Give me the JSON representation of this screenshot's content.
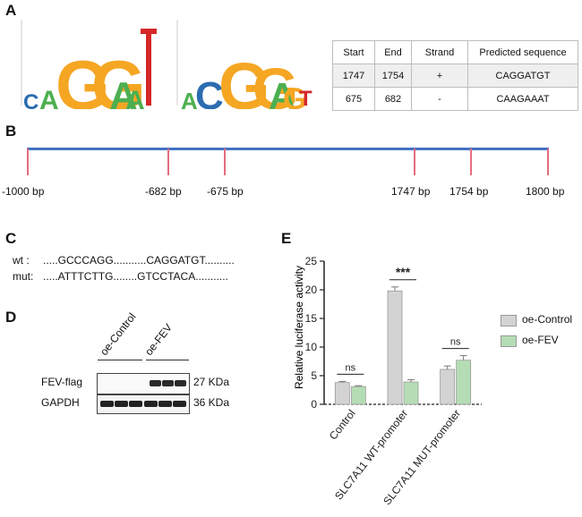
{
  "panels": {
    "a": "A",
    "b": "B",
    "c": "C",
    "d": "D",
    "e": "E"
  },
  "panel_a": {
    "logo1_letters": "CAGGAAAT",
    "logo2_letters": "ACCGGAAGT",
    "table": {
      "headers": [
        "Start",
        "End",
        "Strand",
        "Predicted sequence"
      ],
      "rows": [
        [
          "1747",
          "1754",
          "+",
          "CAGGATGT"
        ],
        [
          "675",
          "682",
          "-",
          "CAAGAAAT"
        ]
      ]
    }
  },
  "panel_b": {
    "line_color": "#4472c4",
    "tick_color": "#e46c7f",
    "labels": [
      "-1000 bp",
      "-682 bp",
      "-675 bp",
      "1747 bp",
      "1754 bp",
      "1800 bp"
    ]
  },
  "panel_c": {
    "wt_label": "wt :",
    "wt_seq": ".....GCCCAGG...........CAGGATGT..........",
    "mut_label": "mut:",
    "mut_seq": ".....ATTTCTTG........GTCCTACA..........."
  },
  "panel_d": {
    "lanes": [
      "oe-Control",
      "oe-FEV"
    ],
    "rows": [
      {
        "name": "FEV-flag",
        "size": "27 KDa"
      },
      {
        "name": "GAPDH",
        "size": "36 KDa"
      }
    ]
  },
  "chart_data": {
    "type": "bar",
    "title": "",
    "ylabel": "Relative luciferase activity",
    "xlabel": "",
    "ylim": [
      0,
      25
    ],
    "yticks": [
      0,
      5,
      10,
      15,
      20,
      25
    ],
    "categories": [
      "Control",
      "SLC7A11 WT-promoter",
      "SLC7A11 MUT-promoter"
    ],
    "series": [
      {
        "name": "oe-Control",
        "color": "#d3d3d3",
        "values": [
          3.8,
          19.8,
          6.1
        ],
        "errors": [
          0.2,
          0.7,
          0.6
        ]
      },
      {
        "name": "oe-FEV",
        "color": "#b5ddb5",
        "values": [
          3.1,
          3.9,
          7.7
        ],
        "errors": [
          0.15,
          0.4,
          0.8
        ]
      }
    ],
    "significance": [
      "ns",
      "***",
      "ns"
    ],
    "legend_position": "right"
  }
}
